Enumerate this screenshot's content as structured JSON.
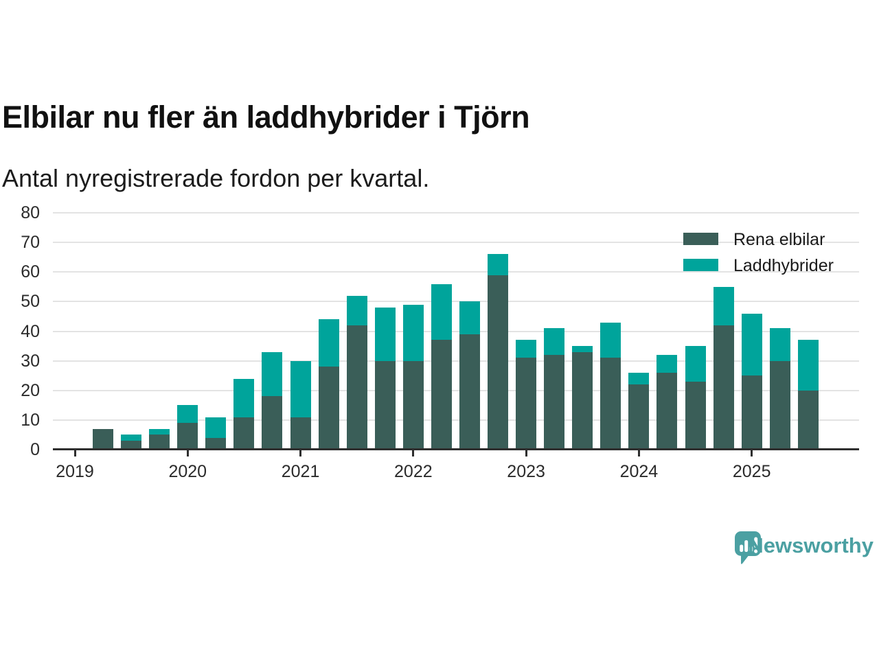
{
  "header": {
    "title": "Elbilar nu fler än laddhybrider i Tjörn",
    "subtitle": "Antal nyregistrerade fordon per kvartal."
  },
  "footer": {
    "brand": "Newsworthy"
  },
  "colors": {
    "elbilar_dark": "#3A5E58",
    "laddhybrid_teal": "#00A49B",
    "brand_teal": "#4BA0A2",
    "axis": "#2E2E2E",
    "grid": "#E3E3E3",
    "text": "#111111"
  },
  "chart_data": {
    "type": "bar",
    "stacked": true,
    "title": "Elbilar nu fler än laddhybrider i Tjörn",
    "subtitle": "Antal nyregistrerade fordon per kvartal.",
    "x": [
      "2019 Q2",
      "2019 Q3",
      "2019 Q4",
      "2020 Q1",
      "2020 Q2",
      "2020 Q3",
      "2020 Q4",
      "2021 Q1",
      "2021 Q2",
      "2021 Q3",
      "2021 Q4",
      "2022 Q1",
      "2022 Q2",
      "2022 Q3",
      "2022 Q4",
      "2023 Q1",
      "2023 Q2",
      "2023 Q3",
      "2023 Q4",
      "2024 Q1",
      "2024 Q2",
      "2024 Q3",
      "2024 Q4",
      "2025 Q1",
      "2025 Q2",
      "2025 Q3"
    ],
    "series": [
      {
        "name": "Rena elbilar",
        "color": "#3A5E58",
        "values": [
          7,
          3,
          5,
          9,
          4,
          11,
          18,
          11,
          28,
          42,
          30,
          30,
          37,
          39,
          59,
          31,
          32,
          33,
          31,
          22,
          26,
          23,
          42,
          25,
          30,
          20
        ]
      },
      {
        "name": "Laddhybrider",
        "color": "#00A49B",
        "values": [
          0,
          2,
          2,
          6,
          7,
          13,
          15,
          19,
          16,
          10,
          18,
          19,
          19,
          11,
          7,
          6,
          9,
          2,
          12,
          4,
          6,
          12,
          13,
          21,
          11,
          17
        ]
      }
    ],
    "totals": [
      7,
      5,
      7,
      15,
      11,
      24,
      33,
      30,
      44,
      52,
      48,
      49,
      56,
      50,
      66,
      37,
      41,
      35,
      43,
      26,
      32,
      35,
      55,
      46,
      41,
      37
    ],
    "ylim": [
      0,
      80
    ],
    "ytick_step": 10,
    "yticks": [
      0,
      10,
      20,
      30,
      40,
      50,
      60,
      70,
      80
    ],
    "xticks": [
      "2019",
      "2020",
      "2021",
      "2022",
      "2023",
      "2024",
      "2025"
    ],
    "grid": true,
    "legend_position": "top-right"
  }
}
